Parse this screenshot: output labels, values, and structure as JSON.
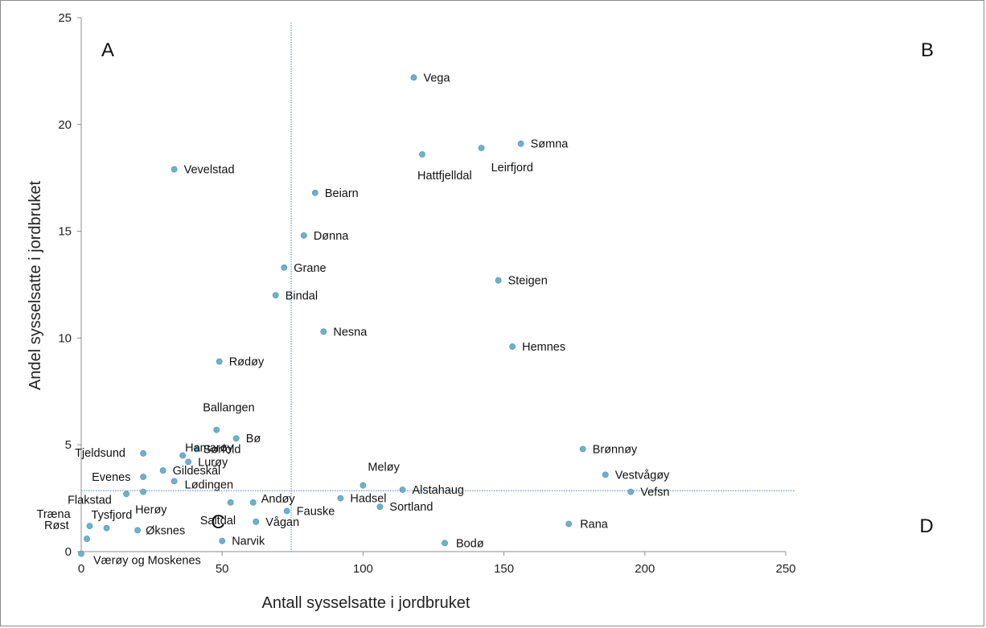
{
  "chart_data": {
    "type": "scatter",
    "xlabel": "Antall sysselsatte i jordbruket",
    "ylabel": "Andel sysselsatte i jordbruket",
    "xlim": [
      0,
      250
    ],
    "ylim": [
      0,
      25
    ],
    "xticks": [
      0,
      50,
      100,
      150,
      200,
      250
    ],
    "yticks": [
      0,
      5,
      10,
      15,
      20,
      25
    ],
    "grid": false,
    "marker_color": "#6fb0cc",
    "reference_lines": {
      "x": 74.5,
      "y": 2.85,
      "color": "#4a7ebb",
      "style": "dotted"
    },
    "quadrant_labels": [
      "A",
      "B",
      "C",
      "D"
    ],
    "points": [
      {
        "label": "Vega",
        "x": 118,
        "y": 22.2
      },
      {
        "label": "Sømna",
        "x": 156,
        "y": 19.1
      },
      {
        "label": "Leirfjord",
        "x": 142,
        "y": 18.9
      },
      {
        "label": "Hattfjelldal",
        "x": 121,
        "y": 18.6
      },
      {
        "label": "Vevelstad",
        "x": 33,
        "y": 17.9
      },
      {
        "label": "Beiarn",
        "x": 83,
        "y": 16.8
      },
      {
        "label": "Dønna",
        "x": 79,
        "y": 14.8
      },
      {
        "label": "Grane",
        "x": 72,
        "y": 13.3
      },
      {
        "label": "Steigen",
        "x": 148,
        "y": 12.7
      },
      {
        "label": "Bindal",
        "x": 69,
        "y": 12.0
      },
      {
        "label": "Nesna",
        "x": 86,
        "y": 10.3
      },
      {
        "label": "Hemnes",
        "x": 153,
        "y": 9.6
      },
      {
        "label": "Rødøy",
        "x": 49,
        "y": 8.9
      },
      {
        "label": "Ballangen",
        "x": 48,
        "y": 5.7
      },
      {
        "label": "Bø",
        "x": 55,
        "y": 5.3
      },
      {
        "label": "Brønnøy",
        "x": 178,
        "y": 4.8
      },
      {
        "label": "Sørfold",
        "x": 41,
        "y": 4.8
      },
      {
        "label": "Tjeldsund",
        "x": 22,
        "y": 4.6
      },
      {
        "label": "Hamarøy",
        "x": 36,
        "y": 4.5
      },
      {
        "label": "Lurøy",
        "x": 38,
        "y": 4.2
      },
      {
        "label": "Gildeskål",
        "x": 29,
        "y": 3.8
      },
      {
        "label": "Vestvågøy",
        "x": 186,
        "y": 3.6
      },
      {
        "label": "Evenes",
        "x": 22,
        "y": 3.5
      },
      {
        "label": "Lødingen",
        "x": 33,
        "y": 3.3
      },
      {
        "label": "Meløy",
        "x": 100,
        "y": 3.1
      },
      {
        "label": "Alstahaug",
        "x": 114,
        "y": 2.9
      },
      {
        "label": "Vefsn",
        "x": 195,
        "y": 2.8
      },
      {
        "label": "Herøy",
        "x": 22,
        "y": 2.8
      },
      {
        "label": "Flakstad",
        "x": 16,
        "y": 2.7
      },
      {
        "label": "Hadsel",
        "x": 92,
        "y": 2.5
      },
      {
        "label": "Andøy",
        "x": 61,
        "y": 2.3
      },
      {
        "label": "Saltdal",
        "x": 53,
        "y": 2.3
      },
      {
        "label": "Sortland",
        "x": 106,
        "y": 2.1
      },
      {
        "label": "Fauske",
        "x": 73,
        "y": 1.9
      },
      {
        "label": "Vågan",
        "x": 62,
        "y": 1.4
      },
      {
        "label": "Rana",
        "x": 173,
        "y": 1.3
      },
      {
        "label": "Træna",
        "x": 3,
        "y": 1.2
      },
      {
        "label": "Tysfjord",
        "x": 9,
        "y": 1.1
      },
      {
        "label": "Øksnes",
        "x": 20,
        "y": 1.0
      },
      {
        "label": "Røst",
        "x": 2,
        "y": 0.6
      },
      {
        "label": "Narvik",
        "x": 50,
        "y": 0.5
      },
      {
        "label": "Bodø",
        "x": 129,
        "y": 0.4
      },
      {
        "label": "Værøy og Moskenes",
        "x": 0,
        "y": -0.1
      }
    ]
  }
}
